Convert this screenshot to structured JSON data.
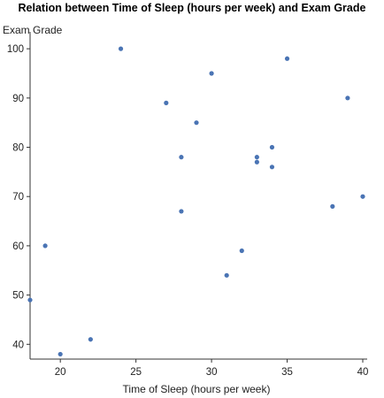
{
  "chart_data": {
    "type": "scatter",
    "title": "Relation between Time of Sleep (hours per week) and Exam Grade",
    "xlabel": "Time of Sleep (hours per week)",
    "ylabel": "Exam Grade",
    "xlim": [
      18,
      40
    ],
    "ylim": [
      37,
      102
    ],
    "xticks": [
      20,
      25,
      30,
      35,
      40
    ],
    "yticks": [
      40,
      50,
      60,
      70,
      80,
      90,
      100
    ],
    "grid": false,
    "color": "#4a74b4",
    "points": [
      {
        "x": 24,
        "y": 100
      },
      {
        "x": 35,
        "y": 98
      },
      {
        "x": 30,
        "y": 95
      },
      {
        "x": 39,
        "y": 90
      },
      {
        "x": 27,
        "y": 89
      },
      {
        "x": 29,
        "y": 85
      },
      {
        "x": 34,
        "y": 80
      },
      {
        "x": 28,
        "y": 78
      },
      {
        "x": 33,
        "y": 78
      },
      {
        "x": 33,
        "y": 77
      },
      {
        "x": 34,
        "y": 76
      },
      {
        "x": 40,
        "y": 70
      },
      {
        "x": 38,
        "y": 68
      },
      {
        "x": 28,
        "y": 67
      },
      {
        "x": 19,
        "y": 60
      },
      {
        "x": 32,
        "y": 59
      },
      {
        "x": 31,
        "y": 54
      },
      {
        "x": 18,
        "y": 49
      },
      {
        "x": 22,
        "y": 41
      },
      {
        "x": 20,
        "y": 38
      }
    ]
  }
}
